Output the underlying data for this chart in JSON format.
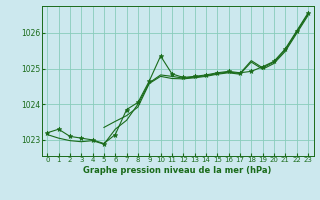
{
  "title": "Graphe pression niveau de la mer (hPa)",
  "bg_color": "#cce8ee",
  "grid_color": "#88ccbb",
  "line_color": "#1a6b1a",
  "marker_color": "#1a6b1a",
  "xlim": [
    -0.5,
    23.5
  ],
  "ylim": [
    1022.55,
    1026.75
  ],
  "yticks": [
    1023,
    1024,
    1025,
    1026
  ],
  "xticks": [
    0,
    1,
    2,
    3,
    4,
    5,
    6,
    7,
    8,
    9,
    10,
    11,
    12,
    13,
    14,
    15,
    16,
    17,
    18,
    19,
    20,
    21,
    22,
    23
  ],
  "series1_marked": [
    [
      0,
      1023.2
    ],
    [
      1,
      1023.3
    ],
    [
      2,
      1023.1
    ],
    [
      3,
      1023.05
    ],
    [
      4,
      1023.0
    ],
    [
      5,
      1022.9
    ],
    [
      6,
      1023.15
    ],
    [
      7,
      1023.85
    ],
    [
      8,
      1024.05
    ],
    [
      9,
      1024.65
    ],
    [
      10,
      1025.35
    ],
    [
      11,
      1024.85
    ],
    [
      12,
      1024.75
    ],
    [
      13,
      1024.78
    ],
    [
      14,
      1024.82
    ],
    [
      15,
      1024.88
    ],
    [
      16,
      1024.92
    ],
    [
      17,
      1024.88
    ],
    [
      18,
      1024.92
    ],
    [
      19,
      1025.05
    ],
    [
      20,
      1025.2
    ],
    [
      21,
      1025.55
    ],
    [
      22,
      1026.05
    ],
    [
      23,
      1026.55
    ]
  ],
  "series2": [
    [
      0,
      1023.15
    ],
    [
      1,
      1023.05
    ],
    [
      2,
      1022.98
    ],
    [
      3,
      1022.95
    ],
    [
      4,
      1022.98
    ],
    [
      5,
      1022.88
    ],
    [
      6,
      1023.3
    ],
    [
      7,
      1023.55
    ],
    [
      8,
      1024.0
    ],
    [
      9,
      1024.6
    ],
    [
      10,
      1024.82
    ],
    [
      11,
      1024.78
    ],
    [
      12,
      1024.73
    ],
    [
      13,
      1024.76
    ],
    [
      14,
      1024.8
    ],
    [
      15,
      1024.86
    ],
    [
      16,
      1024.9
    ],
    [
      17,
      1024.86
    ],
    [
      18,
      1025.22
    ],
    [
      19,
      1025.02
    ],
    [
      20,
      1025.18
    ],
    [
      21,
      1025.52
    ],
    [
      22,
      1026.02
    ],
    [
      23,
      1026.52
    ]
  ],
  "series3": [
    [
      5,
      1023.35
    ],
    [
      6,
      1023.52
    ],
    [
      7,
      1023.68
    ],
    [
      8,
      1023.92
    ],
    [
      9,
      1024.58
    ],
    [
      10,
      1024.78
    ],
    [
      11,
      1024.72
    ],
    [
      12,
      1024.71
    ],
    [
      13,
      1024.74
    ],
    [
      14,
      1024.78
    ],
    [
      15,
      1024.84
    ],
    [
      16,
      1024.88
    ],
    [
      17,
      1024.84
    ],
    [
      18,
      1025.18
    ],
    [
      19,
      1024.98
    ],
    [
      20,
      1025.14
    ],
    [
      21,
      1025.48
    ],
    [
      22,
      1025.98
    ],
    [
      23,
      1026.48
    ]
  ]
}
